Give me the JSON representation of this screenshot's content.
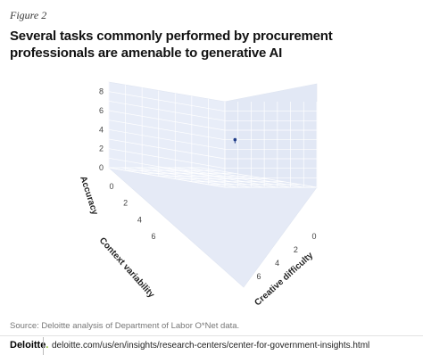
{
  "figure_label": "Figure 2",
  "title": "Several tasks commonly performed by procurement professionals are amenable to generative AI",
  "source": "Source: Deloitte analysis of Department of Labor O*Net data.",
  "footer": {
    "brand": "Deloitte",
    "brand_dot": ".",
    "url": "deloitte.com/us/en/insights/research-centers/center-for-government-insights.html"
  },
  "colors": {
    "pane": "#e8edf8",
    "grid": "#ffffff",
    "marker": "#1f3c88",
    "brand_green": "#86bc25"
  },
  "chart_data": {
    "type": "scatter3d",
    "axes": {
      "z": {
        "label": "Accuracy",
        "ticks": [
          "0",
          "2",
          "4",
          "6",
          "8"
        ]
      },
      "y": {
        "label": "Context variability",
        "ticks": [
          "0",
          "2",
          "4",
          "6"
        ]
      },
      "x": {
        "label": "Creative difficulty",
        "ticks": [
          "0",
          "2",
          "4",
          "6"
        ]
      }
    },
    "points": [
      {
        "creative_difficulty": 3.8,
        "context_variability": 2.4,
        "accuracy": 4.3
      }
    ]
  }
}
